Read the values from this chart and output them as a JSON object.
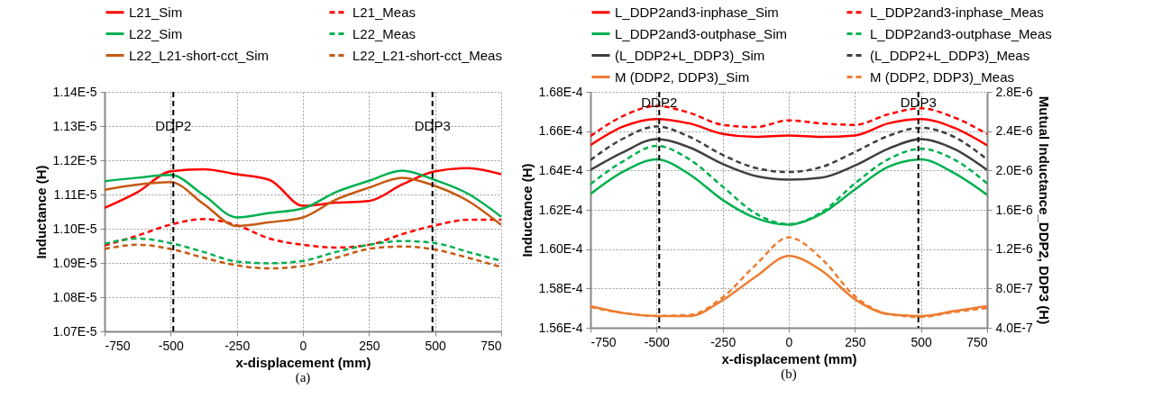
{
  "chart_data": [
    {
      "type": "line",
      "xlabel": "x-displacement (mm)",
      "ylabel": "Inductance (H)",
      "annotations": [
        "(a)"
      ],
      "legend": "top",
      "grid": true,
      "x": [
        -750,
        -625,
        -500,
        -375,
        -250,
        -125,
        0,
        125,
        250,
        375,
        500,
        625,
        750
      ],
      "xlim": [
        -750,
        750
      ],
      "xticks": [
        -750,
        -500,
        -250,
        0,
        250,
        500,
        750
      ],
      "ylim": [
        1.07e-05,
        1.14e-05
      ],
      "yticks": [
        {
          "value": 1.07e-05,
          "label": "1.07E-5"
        },
        {
          "value": 1.08e-05,
          "label": "1.08E-5"
        },
        {
          "value": 1.09e-05,
          "label": "1.09E-5"
        },
        {
          "value": 1.1e-05,
          "label": "1.10E-5"
        },
        {
          "value": 1.11e-05,
          "label": "1.11E-5"
        },
        {
          "value": 1.12e-05,
          "label": "1.12E-5"
        },
        {
          "value": 1.13e-05,
          "label": "1.13E-5"
        },
        {
          "value": 1.14e-05,
          "label": "1.14E-5"
        }
      ],
      "ref_lines": [
        {
          "axis": "x",
          "value": -490,
          "label": "DDP2",
          "color": "#000000",
          "line_style": "dashed"
        },
        {
          "axis": "x",
          "value": 490,
          "label": "DDP3",
          "color": "#000000",
          "line_style": "dashed"
        }
      ],
      "series": [
        {
          "name": "L21_Sim",
          "color": "#ff0000",
          "line_style": "solid",
          "values": [
            1.1061e-05,
            1.1107e-05,
            1.1168e-05,
            1.1174e-05,
            1.1159e-05,
            1.1142e-05,
            1.1067e-05,
            1.1076e-05,
            1.1081e-05,
            1.1129e-05,
            1.1168e-05,
            1.1177e-05,
            1.1159e-05
          ]
        },
        {
          "name": "L21_Meas",
          "color": "#ff0000",
          "line_style": "dashed",
          "values": [
            1.0951e-05,
            1.098e-05,
            1.1012e-05,
            1.1028e-05,
            1.101e-05,
            1.0971e-05,
            1.0953e-05,
            1.0945e-05,
            1.0953e-05,
            1.0984e-05,
            1.101e-05,
            1.1026e-05,
            1.1026e-05
          ]
        },
        {
          "name": "L22_Sim",
          "color": "#00b050",
          "line_style": "solid",
          "values": [
            1.1139e-05,
            1.1149e-05,
            1.1157e-05,
            1.1098e-05,
            1.1033e-05,
            1.1046e-05,
            1.1059e-05,
            1.1107e-05,
            1.114e-05,
            1.117e-05,
            1.1142e-05,
            1.1102e-05,
            1.1035e-05
          ]
        },
        {
          "name": "L22_Meas",
          "color": "#00b050",
          "line_style": "dashed",
          "values": [
            1.0956e-05,
            1.0971e-05,
            1.0958e-05,
            1.0932e-05,
            1.0904e-05,
            1.0899e-05,
            1.0906e-05,
            1.0932e-05,
            1.0953e-05,
            1.0964e-05,
            1.0958e-05,
            1.0932e-05,
            1.0906e-05
          ]
        },
        {
          "name": "L22_L21-short-cct_Sim",
          "color": "#c55a11",
          "line_style": "solid",
          "values": [
            1.1114e-05,
            1.1129e-05,
            1.1136e-05,
            1.1072e-05,
            1.1008e-05,
            1.1019e-05,
            1.1033e-05,
            1.1085e-05,
            1.112e-05,
            1.1149e-05,
            1.1125e-05,
            1.1081e-05,
            1.1011e-05
          ]
        },
        {
          "name": "L22_L21-short-cct_Meas",
          "color": "#c55a11",
          "line_style": "dashed",
          "values": [
            1.0941e-05,
            1.0953e-05,
            1.0941e-05,
            1.0915e-05,
            1.0893e-05,
            1.0884e-05,
            1.0891e-05,
            1.0915e-05,
            1.0941e-05,
            1.0948e-05,
            1.0939e-05,
            1.0915e-05,
            1.0888e-05
          ]
        }
      ]
    },
    {
      "type": "line",
      "xlabel": "x-displacement (mm)",
      "ylabel": "Inductance (H)",
      "y2label": "Mutual Inductance_DDP2, DDP3 (H)",
      "annotations": [
        "(b)"
      ],
      "legend": "top",
      "grid": true,
      "x": [
        -750,
        -625,
        -500,
        -375,
        -250,
        -125,
        0,
        125,
        250,
        375,
        500,
        625,
        750
      ],
      "xlim": [
        -750,
        750
      ],
      "xticks": [
        -750,
        -500,
        -250,
        0,
        250,
        500,
        750
      ],
      "ylim": [
        0.000156,
        0.000168
      ],
      "yticks": [
        {
          "value": 0.000156,
          "label": "1.56E-4"
        },
        {
          "value": 0.000158,
          "label": "1.58E-4"
        },
        {
          "value": 0.00016,
          "label": "1.60E-4"
        },
        {
          "value": 0.000162,
          "label": "1.62E-4"
        },
        {
          "value": 0.000164,
          "label": "1.64E-4"
        },
        {
          "value": 0.000166,
          "label": "1.66E-4"
        },
        {
          "value": 0.000168,
          "label": "1.68E-4"
        }
      ],
      "y2lim": [
        4e-07,
        2.8e-06
      ],
      "y2ticks": [
        {
          "value": 4e-07,
          "label": "4.0E-7"
        },
        {
          "value": 8e-07,
          "label": "8.0E-7"
        },
        {
          "value": 1.2e-06,
          "label": "1.2E-6"
        },
        {
          "value": 1.6e-06,
          "label": "1.6E-6"
        },
        {
          "value": 2e-06,
          "label": "2.0E-6"
        },
        {
          "value": 2.4e-06,
          "label": "2.4E-6"
        },
        {
          "value": 2.8e-06,
          "label": "2.8E-6"
        }
      ],
      "ref_lines": [
        {
          "axis": "x",
          "value": -490,
          "label": "DDP2",
          "color": "#000000",
          "line_style": "dashed"
        },
        {
          "axis": "x",
          "value": 490,
          "label": "DDP3",
          "color": "#000000",
          "line_style": "dashed"
        }
      ],
      "series": [
        {
          "name": "L_DDP2and3-inphase_Sim",
          "color": "#ff0000",
          "line_style": "solid",
          "values": [
            0.00016529,
            0.00016624,
            0.00016662,
            0.00016639,
            0.00016586,
            0.00016571,
            0.00016578,
            0.00016571,
            0.00016578,
            0.00016639,
            0.00016662,
            0.00016617,
            0.00016528
          ]
        },
        {
          "name": "L_DDP2and3-inphase_Meas",
          "color": "#ff0000",
          "line_style": "dashed",
          "values": [
            0.00016575,
            0.00016678,
            0.00016728,
            0.00016693,
            0.00016632,
            0.00016621,
            0.00016655,
            0.00016639,
            0.00016632,
            0.00016685,
            0.00016716,
            0.0001667,
            0.00016586
          ]
        },
        {
          "name": "L_DDP2and3-outphase_Sim",
          "color": "#00b050",
          "line_style": "solid",
          "values": [
            0.0001628,
            0.00016395,
            0.00016456,
            0.0001638,
            0.0001625,
            0.00016158,
            0.00016124,
            0.00016181,
            0.00016303,
            0.00016418,
            0.00016456,
            0.00016387,
            0.00016276
          ]
        },
        {
          "name": "L_DDP2and3-outphase_Meas",
          "color": "#00b050",
          "line_style": "dashed",
          "values": [
            0.00016331,
            0.00016448,
            0.00016525,
            0.00016456,
            0.00016318,
            0.00016181,
            0.00016127,
            0.00016188,
            0.00016334,
            0.00016456,
            0.0001651,
            0.00016456,
            0.00016334
          ]
        },
        {
          "name": "(L_DDP2+L_DDP3)_Sim",
          "color": "#404040",
          "line_style": "solid",
          "values": [
            0.00016403,
            0.00016494,
            0.0001656,
            0.00016517,
            0.00016433,
            0.00016372,
            0.00016354,
            0.00016364,
            0.00016425,
            0.0001651,
            0.0001656,
            0.0001651,
            0.00016403
          ]
        },
        {
          "name": "(L_DDP2+L_DDP3)_Meas",
          "color": "#404040",
          "line_style": "dashed",
          "values": [
            0.00016453,
            0.00016563,
            0.00016624,
            0.00016571,
            0.00016479,
            0.00016413,
            0.00016392,
            0.00016418,
            0.00016494,
            0.00016575,
            0.00016617,
            0.00016571,
            0.00016456
          ]
        },
        {
          "name": "M (DDP2, DDP3)_Sim",
          "color": "#ed7d31",
          "line_style": "solid",
          "axis": "y2",
          "values": [
            6.2e-07,
            5.5e-07,
            5.2e-07,
            5.2e-07,
            6.8e-07,
            9.2e-07,
            1.13e-06,
            9.8e-07,
            6.9e-07,
            5.4e-07,
            5.2e-07,
            5.7e-07,
            6.2e-07
          ]
        },
        {
          "name": "M (DDP2, DDP3)_Meas",
          "color": "#ed7d31",
          "line_style": "dashed",
          "axis": "y2",
          "values": [
            6.1e-07,
            5.5e-07,
            5.2e-07,
            5.3e-07,
            7.1e-07,
            1.04e-06,
            1.32e-06,
            1.1e-06,
            7.2e-07,
            5.4e-07,
            5.1e-07,
            5.6e-07,
            6e-07
          ]
        }
      ]
    }
  ]
}
